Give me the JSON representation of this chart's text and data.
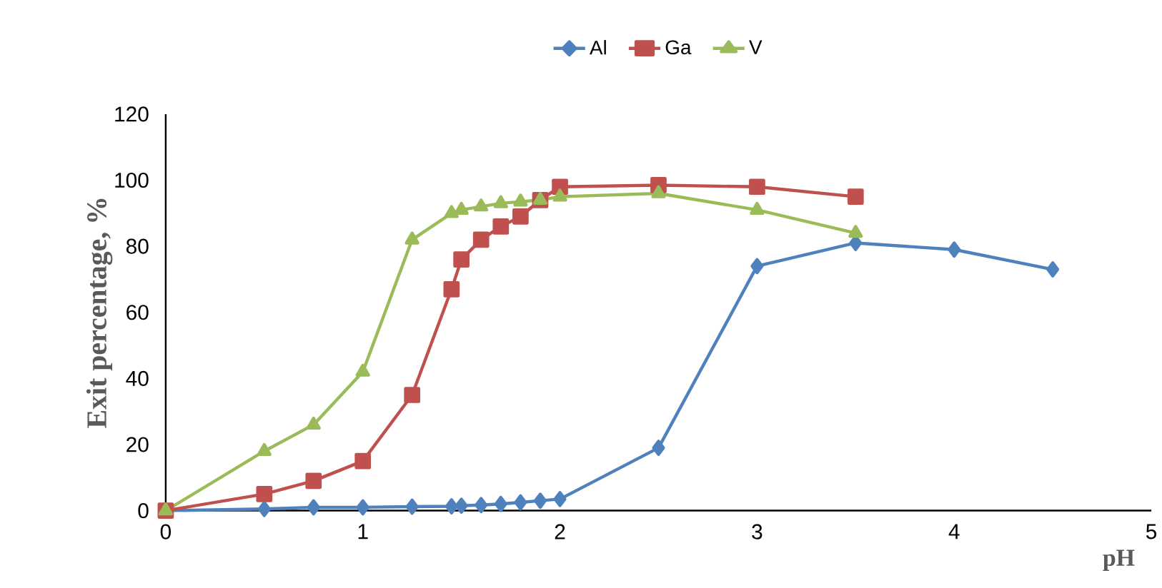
{
  "chart_data": {
    "type": "line",
    "xlabel": "pH",
    "ylabel": "Exit percentage, %",
    "xlim": [
      0,
      5
    ],
    "xticks": [
      0,
      1,
      2,
      3,
      4,
      5
    ],
    "ylim": [
      0,
      120
    ],
    "yticks": [
      0,
      20,
      40,
      60,
      80,
      100,
      120
    ],
    "grid": false,
    "legend": "top",
    "series": [
      {
        "name": "Al",
        "color": "#4f81bd",
        "marker": "diamond",
        "x": [
          0,
          0.5,
          0.75,
          1,
          1.25,
          1.45,
          1.5,
          1.6,
          1.7,
          1.8,
          1.9,
          2,
          2.5,
          3,
          3.5,
          4,
          4.5
        ],
        "values": [
          0,
          0.5,
          1,
          1,
          1.2,
          1.3,
          1.5,
          1.7,
          2,
          2.5,
          3,
          3.5,
          19,
          74,
          81,
          79,
          73
        ]
      },
      {
        "name": "Ga",
        "color": "#c0504d",
        "marker": "square",
        "x": [
          0,
          0.5,
          0.75,
          1,
          1.25,
          1.45,
          1.5,
          1.6,
          1.7,
          1.8,
          1.9,
          2,
          2.5,
          3,
          3.5
        ],
        "values": [
          0,
          5,
          9,
          15,
          35,
          67,
          76,
          82,
          86,
          89,
          94,
          98,
          98.5,
          98,
          95
        ]
      },
      {
        "name": "V",
        "color": "#9bbb59",
        "marker": "triangle",
        "x": [
          0,
          0.5,
          0.75,
          1,
          1.25,
          1.45,
          1.5,
          1.6,
          1.7,
          1.8,
          1.9,
          2,
          2.5,
          3,
          3.5
        ],
        "values": [
          0,
          18,
          26,
          42,
          82,
          90,
          91,
          92,
          93,
          93.5,
          94,
          95,
          96,
          91,
          84
        ]
      }
    ]
  }
}
